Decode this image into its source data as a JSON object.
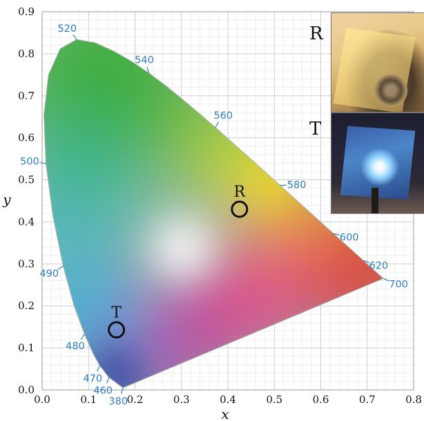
{
  "chart_data": {
    "type": "chromaticity-diagram",
    "title": "",
    "xlabel": "x",
    "ylabel": "y",
    "xlim": [
      0.0,
      0.8
    ],
    "ylim": [
      0.0,
      0.9
    ],
    "x_ticks": [
      "0.0",
      "0.1",
      "0.2",
      "0.3",
      "0.4",
      "0.5",
      "0.6",
      "0.7",
      "0.8"
    ],
    "y_ticks": [
      "0.0",
      "0.1",
      "0.2",
      "0.3",
      "0.4",
      "0.5",
      "0.6",
      "0.7",
      "0.8",
      "0.9"
    ],
    "grid": true,
    "spectral_locus": [
      {
        "wl": "380",
        "x": 0.1741,
        "y": 0.005,
        "label": true
      },
      {
        "wl": "460",
        "x": 0.144,
        "y": 0.0297,
        "label": true
      },
      {
        "wl": "470",
        "x": 0.1241,
        "y": 0.0578,
        "label": true
      },
      {
        "wl": "475",
        "x": 0.1096,
        "y": 0.0868,
        "label": false
      },
      {
        "wl": "480",
        "x": 0.0913,
        "y": 0.1327,
        "label": true
      },
      {
        "wl": "485",
        "x": 0.0687,
        "y": 0.2007,
        "label": false
      },
      {
        "wl": "490",
        "x": 0.0454,
        "y": 0.295,
        "label": true
      },
      {
        "wl": "495",
        "x": 0.0235,
        "y": 0.4127,
        "label": false
      },
      {
        "wl": "500",
        "x": 0.0082,
        "y": 0.5384,
        "label": true
      },
      {
        "wl": "505",
        "x": 0.0039,
        "y": 0.6548,
        "label": false
      },
      {
        "wl": "510",
        "x": 0.0139,
        "y": 0.7502,
        "label": false
      },
      {
        "wl": "515",
        "x": 0.0389,
        "y": 0.812,
        "label": false
      },
      {
        "wl": "520",
        "x": 0.0743,
        "y": 0.8338,
        "label": true
      },
      {
        "wl": "525",
        "x": 0.1142,
        "y": 0.8262,
        "label": false
      },
      {
        "wl": "530",
        "x": 0.1547,
        "y": 0.8059,
        "label": false
      },
      {
        "wl": "535",
        "x": 0.1929,
        "y": 0.7816,
        "label": false
      },
      {
        "wl": "540",
        "x": 0.2296,
        "y": 0.7543,
        "label": true
      },
      {
        "wl": "545",
        "x": 0.2658,
        "y": 0.7243,
        "label": false
      },
      {
        "wl": "550",
        "x": 0.3016,
        "y": 0.6923,
        "label": false
      },
      {
        "wl": "555",
        "x": 0.3373,
        "y": 0.6589,
        "label": false
      },
      {
        "wl": "560",
        "x": 0.3731,
        "y": 0.6245,
        "label": true
      },
      {
        "wl": "565",
        "x": 0.4087,
        "y": 0.5896,
        "label": false
      },
      {
        "wl": "570",
        "x": 0.4441,
        "y": 0.5547,
        "label": false
      },
      {
        "wl": "575",
        "x": 0.4788,
        "y": 0.5202,
        "label": false
      },
      {
        "wl": "580",
        "x": 0.5125,
        "y": 0.4866,
        "label": true
      },
      {
        "wl": "585",
        "x": 0.5448,
        "y": 0.4544,
        "label": false
      },
      {
        "wl": "590",
        "x": 0.5752,
        "y": 0.4242,
        "label": false
      },
      {
        "wl": "595",
        "x": 0.6029,
        "y": 0.3965,
        "label": false
      },
      {
        "wl": "600",
        "x": 0.627,
        "y": 0.3725,
        "label": true
      },
      {
        "wl": "610",
        "x": 0.6658,
        "y": 0.334,
        "label": false
      },
      {
        "wl": "620",
        "x": 0.6915,
        "y": 0.3083,
        "label": true
      },
      {
        "wl": "640",
        "x": 0.719,
        "y": 0.2809,
        "label": false
      },
      {
        "wl": "700",
        "x": 0.7347,
        "y": 0.2653,
        "label": true
      }
    ],
    "markers": [
      {
        "label": "R",
        "x": 0.425,
        "y": 0.43
      },
      {
        "label": "T",
        "x": 0.16,
        "y": 0.143
      }
    ],
    "colors": {
      "wavelength_label": "#2f7fc4",
      "grid": "#d9d9d9",
      "marker": "#111111"
    }
  },
  "inset": {
    "reflection_label": "R",
    "transmission_label": "T"
  }
}
